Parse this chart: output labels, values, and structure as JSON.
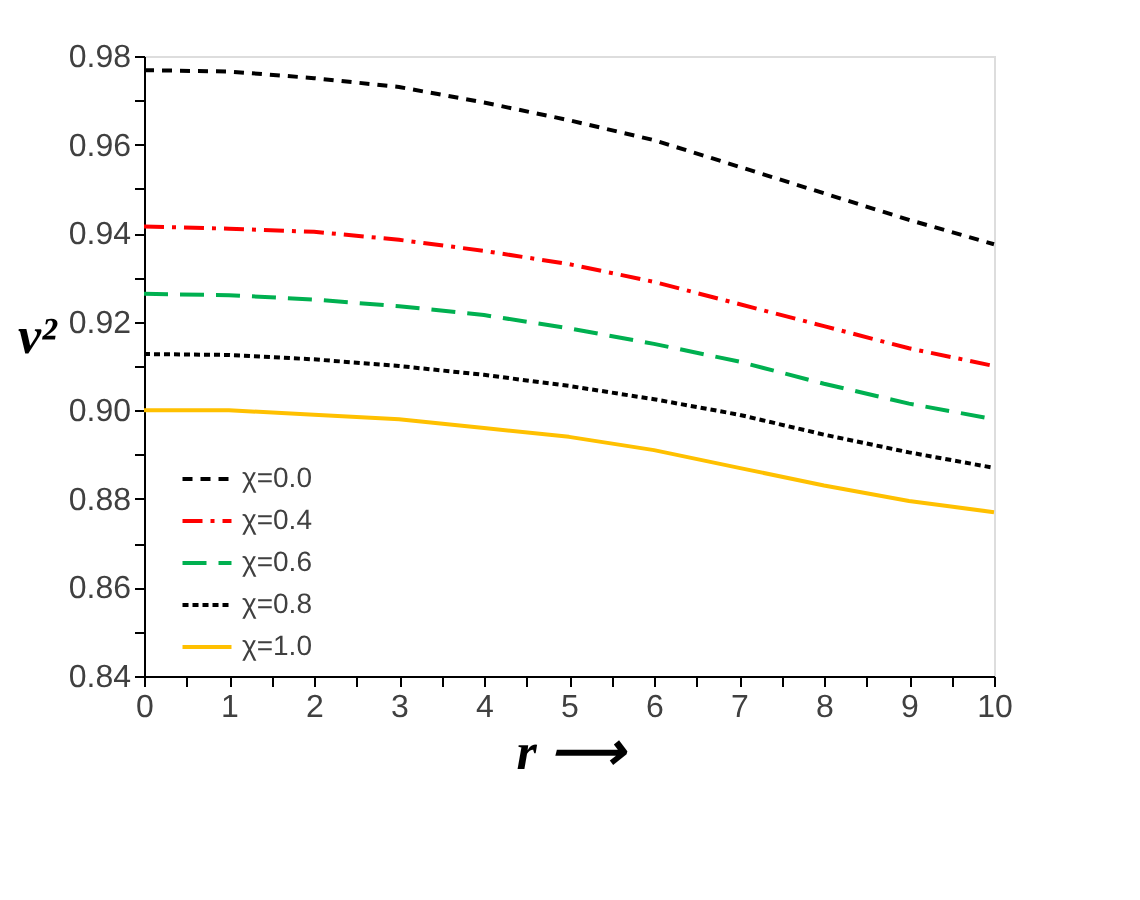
{
  "chart_data": {
    "type": "line",
    "xlabel": "r ⟶",
    "ylabel": "v²",
    "x": [
      0,
      1,
      2,
      3,
      4,
      5,
      6,
      7,
      8,
      9,
      10
    ],
    "series": [
      {
        "name": "χ=0.0",
        "color": "#000000",
        "line_style": "dashed",
        "values": [
          0.9768,
          0.9765,
          0.975,
          0.973,
          0.9695,
          0.9655,
          0.961,
          0.955,
          0.949,
          0.943,
          0.9375
        ]
      },
      {
        "name": "χ=0.4",
        "color": "#ff0000",
        "line_style": "dashdot",
        "values": [
          0.9415,
          0.941,
          0.9403,
          0.9385,
          0.936,
          0.933,
          0.929,
          0.924,
          0.919,
          0.914,
          0.91
        ]
      },
      {
        "name": "χ=0.6",
        "color": "#00b050",
        "line_style": "longdash",
        "values": [
          0.9263,
          0.926,
          0.925,
          0.9235,
          0.9215,
          0.9185,
          0.915,
          0.911,
          0.906,
          0.9015,
          0.898
        ]
      },
      {
        "name": "χ=0.8",
        "color": "#000000",
        "line_style": "dotted",
        "values": [
          0.9127,
          0.9125,
          0.9115,
          0.91,
          0.908,
          0.9055,
          0.9025,
          0.899,
          0.8945,
          0.8905,
          0.887
        ]
      },
      {
        "name": "χ=1.0",
        "color": "#ffc000",
        "line_style": "solid",
        "values": [
          0.9,
          0.9,
          0.899,
          0.898,
          0.896,
          0.894,
          0.891,
          0.887,
          0.883,
          0.8795,
          0.877
        ]
      }
    ],
    "xlim": [
      0,
      10
    ],
    "xticks": [
      0,
      {
        "value": 0.5,
        "label": null
      },
      1,
      {
        "value": 1.5,
        "label": null
      },
      2,
      {
        "value": 2.5,
        "label": null
      },
      3,
      {
        "value": 3.5,
        "label": null
      },
      4,
      {
        "value": 4.5,
        "label": null
      },
      5,
      {
        "value": 5.5,
        "label": null
      },
      6,
      {
        "value": 6.5,
        "label": null
      },
      7,
      {
        "value": 7.5,
        "label": null
      },
      8,
      {
        "value": 8.5,
        "label": null
      },
      9,
      {
        "value": 9.5,
        "label": null
      },
      10
    ],
    "ylim": [
      0.84,
      0.98
    ],
    "yticks": [
      0.84,
      {
        "value": 0.85,
        "label": null
      },
      0.86,
      {
        "value": 0.87,
        "label": null
      },
      0.88,
      {
        "value": 0.89,
        "label": null
      },
      {
        "value": 0.9,
        "label": "0.90"
      },
      {
        "value": 0.91,
        "label": null
      },
      0.92,
      {
        "value": 0.93,
        "label": null
      },
      0.94,
      {
        "value": 0.95,
        "label": null
      },
      0.96,
      {
        "value": 0.97,
        "label": null
      },
      0.98
    ],
    "grid": false,
    "legend": "bottom left",
    "marker": "none"
  }
}
